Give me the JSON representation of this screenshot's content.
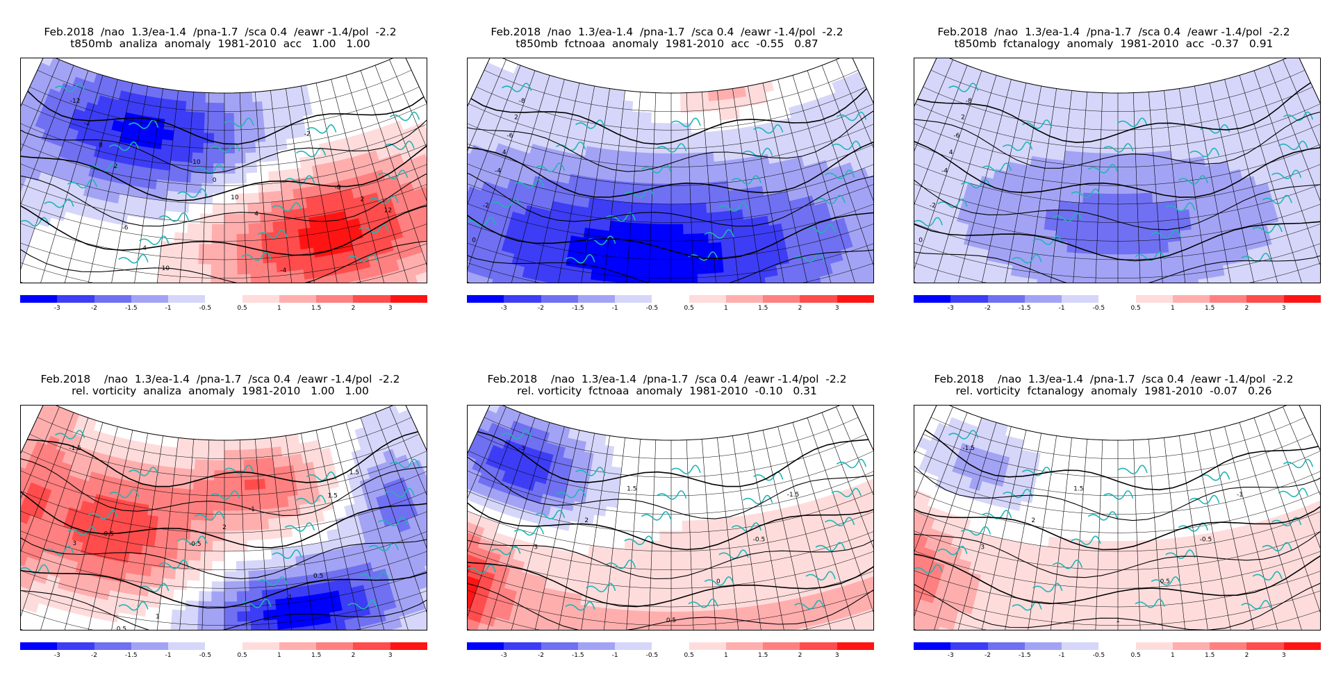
{
  "colorbar": {
    "colors": [
      "#0000ff",
      "#3d3df5",
      "#7070f2",
      "#a3a3f5",
      "#d6d6fa",
      "#ffffff",
      "#ffdcdc",
      "#ffaeae",
      "#ff8080",
      "#ff4c4c",
      "#ff1414"
    ],
    "ticks": [
      "-3",
      "-2",
      "-1.5",
      "-1",
      "-0.5",
      "0.5",
      "1",
      "1.5",
      "2",
      "3"
    ]
  },
  "panels": [
    {
      "id": "t850-analiza",
      "title_line1": "Feb.2018  /nao  1.3/ea-1.4  /pna-1.7  /sca 0.4  /eawr -1.4/pol  -2.2",
      "title_line2": "t850mb  analiza  anomaly  1981-2010  acc   1.00   1.00",
      "pattern": "t850-analysis",
      "contour_labels": [
        "-12",
        "-10",
        "-8",
        "-6",
        "-4",
        "-2",
        "0",
        "2",
        "4",
        "6",
        "8",
        "10",
        "12",
        "10",
        "-2",
        "2",
        "4"
      ]
    },
    {
      "id": "t850-fctnoaa",
      "title_line1": "Feb.2018  /nao  1.3/ea-1.4  /pna-1.7  /sca 0.4  /eawr -1.4/pol  -2.2",
      "title_line2": "t850mb  fctnoaa  anomaly  1981-2010  acc  -0.55   0.87",
      "pattern": "t850-noaa",
      "contour_labels": [
        "-8",
        "-6",
        "-4",
        "-2",
        "0",
        "2",
        "4"
      ]
    },
    {
      "id": "t850-fctanalogy",
      "title_line1": "Feb.2018  /nao  1.3/ea-1.4  /pna-1.7  /sca 0.4  /eawr -1.4/pol  -2.2",
      "title_line2": "t850mb  fctanalogy  anomaly  1981-2010  acc  -0.37   0.91",
      "pattern": "t850-analogy",
      "contour_labels": [
        "-8",
        "-6",
        "-4",
        "-2",
        "0",
        "2",
        "4"
      ]
    },
    {
      "id": "vort-analiza",
      "title_line1": "Feb.2018    /nao  1.3/ea-1.4  /pna-1.7  /sca 0.4  /eawr -1.4/pol  -2.2",
      "title_line2": "rel. vorticity  analiza  anomaly  1981-2010   1.00   1.00",
      "pattern": "vort-analysis",
      "contour_labels": [
        "-1.5",
        "-1",
        "-0.5",
        "0.5",
        "1",
        "1.5",
        "2",
        "3",
        "-1",
        "0.5",
        "1.5",
        "-0.5"
      ]
    },
    {
      "id": "vort-fctnoaa",
      "title_line1": "Feb.2018    /nao  1.3/ea-1.4  /pna-1.7  /sca 0.4  /eawr -1.4/pol  -2.2",
      "title_line2": "rel. vorticity  fctnoaa  anomaly  1981-2010  -0.10   0.31",
      "pattern": "vort-noaa",
      "contour_labels": [
        "-3",
        "-1.5",
        "-0.5",
        "0",
        "0.5",
        "1.5",
        "2",
        "3"
      ]
    },
    {
      "id": "vort-fctanalogy",
      "title_line1": "Feb.2018    /nao  1.3/ea-1.4  /pna-1.7  /sca 0.4  /eawr -1.4/pol  -2.2",
      "title_line2": "rel. vorticity  fctanalogy  anomaly  1981-2010  -0.07   0.26",
      "pattern": "vort-analogy",
      "contour_labels": [
        "-1.5",
        "-1",
        "-0.5",
        "0.5",
        "1",
        "1.5",
        "2",
        "3"
      ]
    }
  ]
}
